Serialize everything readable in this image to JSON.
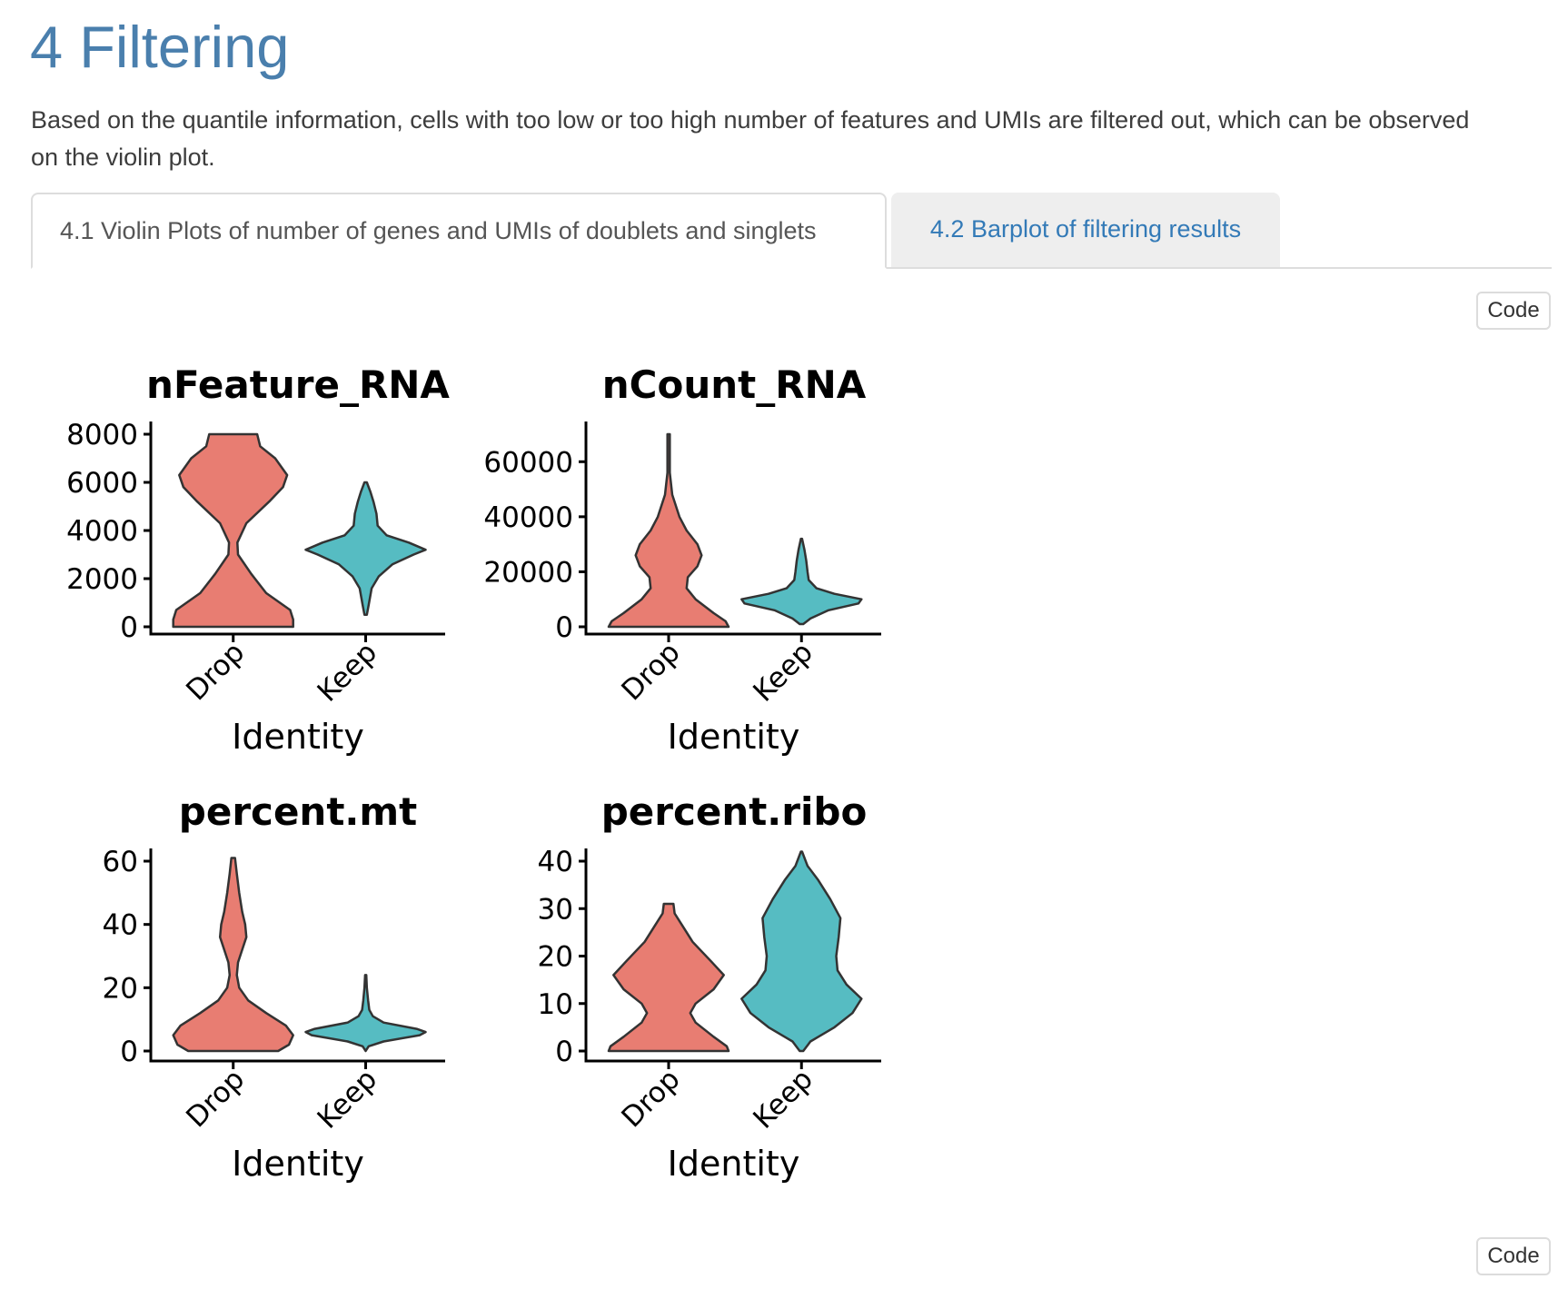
{
  "section": {
    "heading": "4 Filtering",
    "intro": "Based on the quantile information, cells with too low or too high number of features and UMIs are filtered out, which can be observed on the violin plot."
  },
  "tabs": [
    {
      "label": "4.1 Violin Plots of number of genes and UMIs of doublets and singlets",
      "active": true
    },
    {
      "label": "4.2 Barplot of filtering results",
      "active": false
    }
  ],
  "code_buttons": [
    "Code",
    "Code"
  ],
  "colors": {
    "Drop": "#e87d72",
    "Keep": "#56bcc2",
    "outline": "#333333",
    "accent": "#4a7fad",
    "link": "#337ab7"
  },
  "chart_data": [
    {
      "type": "violin",
      "title": "nFeature_RNA",
      "xlabel": "Identity",
      "ylabel": "",
      "categories": [
        "Drop",
        "Keep"
      ],
      "ylim": [
        0,
        8000
      ],
      "yticks": [
        0,
        2000,
        4000,
        6000,
        8000
      ],
      "violins": [
        {
          "name": "Drop",
          "min": 0,
          "max": 8000,
          "profile": [
            [
              0,
              1.0
            ],
            [
              300,
              1.0
            ],
            [
              700,
              0.95
            ],
            [
              1400,
              0.55
            ],
            [
              2200,
              0.3
            ],
            [
              3000,
              0.08
            ],
            [
              3500,
              0.07
            ],
            [
              4300,
              0.22
            ],
            [
              5200,
              0.6
            ],
            [
              5800,
              0.83
            ],
            [
              6300,
              0.9
            ],
            [
              7000,
              0.7
            ],
            [
              7500,
              0.45
            ],
            [
              8000,
              0.4
            ]
          ]
        },
        {
          "name": "Keep",
          "min": 500,
          "max": 6000,
          "profile": [
            [
              500,
              0.02
            ],
            [
              900,
              0.05
            ],
            [
              1600,
              0.1
            ],
            [
              2100,
              0.22
            ],
            [
              2600,
              0.45
            ],
            [
              3000,
              0.8
            ],
            [
              3200,
              1.0
            ],
            [
              3500,
              0.72
            ],
            [
              3800,
              0.35
            ],
            [
              4200,
              0.2
            ],
            [
              4700,
              0.18
            ],
            [
              5200,
              0.13
            ],
            [
              5600,
              0.08
            ],
            [
              6000,
              0.02
            ]
          ]
        }
      ]
    },
    {
      "type": "violin",
      "title": "nCount_RNA",
      "xlabel": "Identity",
      "ylabel": "",
      "categories": [
        "Drop",
        "Keep"
      ],
      "ylim": [
        0,
        70000
      ],
      "yticks": [
        0,
        20000,
        40000,
        60000
      ],
      "violins": [
        {
          "name": "Drop",
          "min": 0,
          "max": 70000,
          "profile": [
            [
              0,
              1.0
            ],
            [
              2000,
              0.95
            ],
            [
              5000,
              0.75
            ],
            [
              10000,
              0.45
            ],
            [
              14000,
              0.3
            ],
            [
              18000,
              0.32
            ],
            [
              22000,
              0.48
            ],
            [
              26000,
              0.55
            ],
            [
              30000,
              0.48
            ],
            [
              35000,
              0.3
            ],
            [
              40000,
              0.18
            ],
            [
              48000,
              0.06
            ],
            [
              56000,
              0.02
            ],
            [
              62000,
              0.02
            ],
            [
              70000,
              0.02
            ]
          ]
        },
        {
          "name": "Keep",
          "min": 1000,
          "max": 32000,
          "profile": [
            [
              1000,
              0.03
            ],
            [
              3000,
              0.15
            ],
            [
              6000,
              0.45
            ],
            [
              8500,
              0.95
            ],
            [
              10000,
              1.0
            ],
            [
              12000,
              0.55
            ],
            [
              14000,
              0.25
            ],
            [
              17000,
              0.12
            ],
            [
              20000,
              0.1
            ],
            [
              24000,
              0.08
            ],
            [
              28000,
              0.05
            ],
            [
              32000,
              0.01
            ]
          ]
        }
      ]
    },
    {
      "type": "violin",
      "title": "percent.mt",
      "xlabel": "Identity",
      "ylabel": "",
      "categories": [
        "Drop",
        "Keep"
      ],
      "ylim": [
        0,
        60
      ],
      "yticks": [
        0,
        20,
        40,
        60
      ],
      "violins": [
        {
          "name": "Drop",
          "min": 0,
          "max": 61,
          "profile": [
            [
              0,
              0.75
            ],
            [
              2,
              0.93
            ],
            [
              5,
              1.0
            ],
            [
              8,
              0.88
            ],
            [
              12,
              0.55
            ],
            [
              16,
              0.25
            ],
            [
              20,
              0.1
            ],
            [
              24,
              0.06
            ],
            [
              28,
              0.08
            ],
            [
              32,
              0.15
            ],
            [
              36,
              0.22
            ],
            [
              40,
              0.2
            ],
            [
              44,
              0.15
            ],
            [
              50,
              0.1
            ],
            [
              56,
              0.06
            ],
            [
              61,
              0.03
            ]
          ]
        },
        {
          "name": "Keep",
          "min": 0,
          "max": 24,
          "profile": [
            [
              0,
              0.0
            ],
            [
              1.5,
              0.05
            ],
            [
              3,
              0.3
            ],
            [
              5,
              0.9
            ],
            [
              6,
              1.0
            ],
            [
              7,
              0.85
            ],
            [
              9,
              0.3
            ],
            [
              11,
              0.12
            ],
            [
              13,
              0.06
            ],
            [
              16,
              0.04
            ],
            [
              20,
              0.02
            ],
            [
              24,
              0.01
            ]
          ]
        }
      ]
    },
    {
      "type": "violin",
      "title": "percent.ribo",
      "xlabel": "Identity",
      "ylabel": "",
      "categories": [
        "Drop",
        "Keep"
      ],
      "ylim": [
        0,
        40
      ],
      "yticks": [
        0,
        10,
        20,
        30,
        40
      ],
      "violins": [
        {
          "name": "Drop",
          "min": 0,
          "max": 31,
          "profile": [
            [
              0,
              1.0
            ],
            [
              1,
              0.97
            ],
            [
              3,
              0.75
            ],
            [
              6,
              0.45
            ],
            [
              8,
              0.36
            ],
            [
              10,
              0.45
            ],
            [
              13,
              0.75
            ],
            [
              16,
              0.92
            ],
            [
              19,
              0.7
            ],
            [
              23,
              0.4
            ],
            [
              27,
              0.2
            ],
            [
              29,
              0.1
            ],
            [
              31,
              0.08
            ]
          ]
        },
        {
          "name": "Keep",
          "min": 0,
          "max": 42,
          "profile": [
            [
              0,
              0.03
            ],
            [
              2,
              0.15
            ],
            [
              5,
              0.55
            ],
            [
              8,
              0.85
            ],
            [
              11,
              1.0
            ],
            [
              14,
              0.75
            ],
            [
              17,
              0.6
            ],
            [
              20,
              0.58
            ],
            [
              24,
              0.62
            ],
            [
              28,
              0.65
            ],
            [
              32,
              0.48
            ],
            [
              36,
              0.28
            ],
            [
              39,
              0.1
            ],
            [
              42,
              0.01
            ]
          ]
        }
      ]
    }
  ]
}
